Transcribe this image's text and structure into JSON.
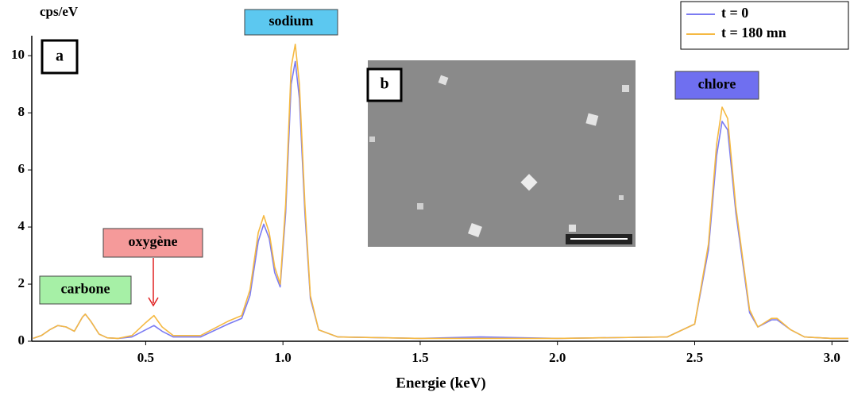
{
  "chart_data": {
    "type": "line",
    "ylabel": "cps/eV",
    "xlabel": "Energie (keV)",
    "panels": [
      "a",
      "b"
    ],
    "annotations": [
      {
        "text": "carbone",
        "color": "#a6f0a6"
      },
      {
        "text": "oxygène",
        "color": "#f59a9a"
      },
      {
        "text": "sodium",
        "color": "#5cc8f0"
      },
      {
        "text": "chlore",
        "color": "#6f6ff0"
      }
    ],
    "x": [
      0.09,
      0.12,
      0.15,
      0.18,
      0.21,
      0.24,
      0.27,
      0.28,
      0.3,
      0.33,
      0.36,
      0.4,
      0.45,
      0.5,
      0.53,
      0.56,
      0.6,
      0.7,
      0.8,
      0.85,
      0.88,
      0.91,
      0.93,
      0.95,
      0.97,
      0.99,
      1.01,
      1.03,
      1.045,
      1.06,
      1.08,
      1.1,
      1.13,
      1.2,
      1.5,
      1.72,
      2.0,
      2.4,
      2.5,
      2.55,
      2.58,
      2.6,
      2.62,
      2.65,
      2.7,
      2.73,
      2.78,
      2.8,
      2.85,
      2.9,
      3.0,
      3.06
    ],
    "series": [
      {
        "name": "t = 0",
        "color": "#7b7bf2",
        "values": [
          0.1,
          0.2,
          0.4,
          0.55,
          0.5,
          0.35,
          0.85,
          0.95,
          0.7,
          0.25,
          0.12,
          0.1,
          0.15,
          0.4,
          0.55,
          0.35,
          0.15,
          0.15,
          0.6,
          0.8,
          1.6,
          3.5,
          4.1,
          3.6,
          2.4,
          1.9,
          4.5,
          9.0,
          9.8,
          8.5,
          4.5,
          1.5,
          0.4,
          0.15,
          0.1,
          0.15,
          0.1,
          0.15,
          0.6,
          3.2,
          6.5,
          7.7,
          7.4,
          4.5,
          1.0,
          0.5,
          0.75,
          0.75,
          0.4,
          0.15,
          0.1,
          0.1
        ]
      },
      {
        "name": "t = 180 mn",
        "color": "#f5b942",
        "values": [
          0.1,
          0.2,
          0.4,
          0.55,
          0.5,
          0.35,
          0.85,
          0.95,
          0.7,
          0.25,
          0.12,
          0.1,
          0.2,
          0.65,
          0.9,
          0.5,
          0.2,
          0.2,
          0.7,
          0.9,
          1.8,
          3.8,
          4.4,
          3.8,
          2.6,
          2.0,
          4.8,
          9.6,
          10.4,
          9.0,
          4.8,
          1.6,
          0.4,
          0.15,
          0.1,
          0.1,
          0.1,
          0.15,
          0.6,
          3.4,
          6.9,
          8.2,
          7.8,
          4.7,
          1.1,
          0.5,
          0.8,
          0.8,
          0.4,
          0.15,
          0.1,
          0.1
        ]
      }
    ],
    "xlim": [
      0.085,
      3.06
    ],
    "ylim": [
      0,
      10.7
    ],
    "xticks": [
      0.5,
      {
        "value": 1,
        "label": "1.0"
      },
      1.5,
      {
        "value": 2,
        "label": "2.0"
      },
      2.5,
      {
        "value": 3,
        "label": "3.0"
      }
    ],
    "yticks": [
      0,
      2,
      4,
      6,
      8,
      10
    ],
    "grid": false
  }
}
